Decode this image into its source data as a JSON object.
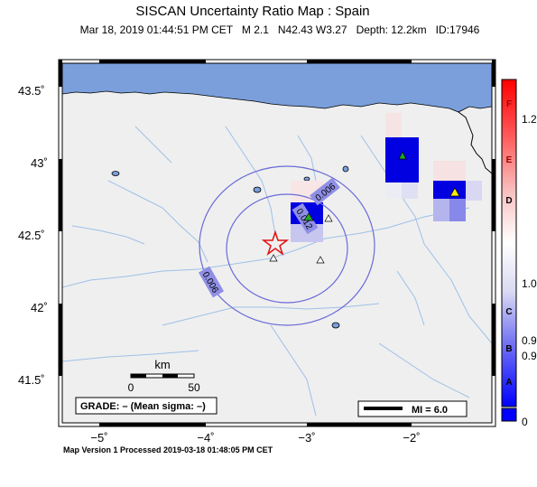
{
  "title": "SISCAN Uncertainty Ratio Map : Spain",
  "subtitle": "Mar 18, 2019 01:44:51 PM CET   M 2.1   N42.43 W3.27   Depth: 12.2km   ID:17946",
  "footer": "Map Version 1 Processed 2019-03-18 01:48:05 PM CET",
  "lat_ticks": [
    "43.5˚",
    "43˚",
    "42.5˚",
    "42˚",
    "41.5˚"
  ],
  "lon_ticks": [
    "−5˚",
    "−4˚",
    "−3˚",
    "−2˚"
  ],
  "contours": [
    "0.006",
    "0.012",
    "0.006"
  ],
  "scale_bar": {
    "unit": "km",
    "zero": "0",
    "max": "50"
  },
  "grade": "GRADE: – (Mean sigma: –)",
  "mi_label": "MI = 6.0",
  "colorbar": {
    "letters": [
      "F",
      "E",
      "D",
      "C",
      "B",
      "A"
    ],
    "values": [
      "1.2",
      "1.0",
      "0.9",
      "0.9",
      "0"
    ]
  },
  "colors": {
    "sea": "#7a9fdb",
    "land": "#efefef",
    "rivers": "#9ec0e8"
  }
}
